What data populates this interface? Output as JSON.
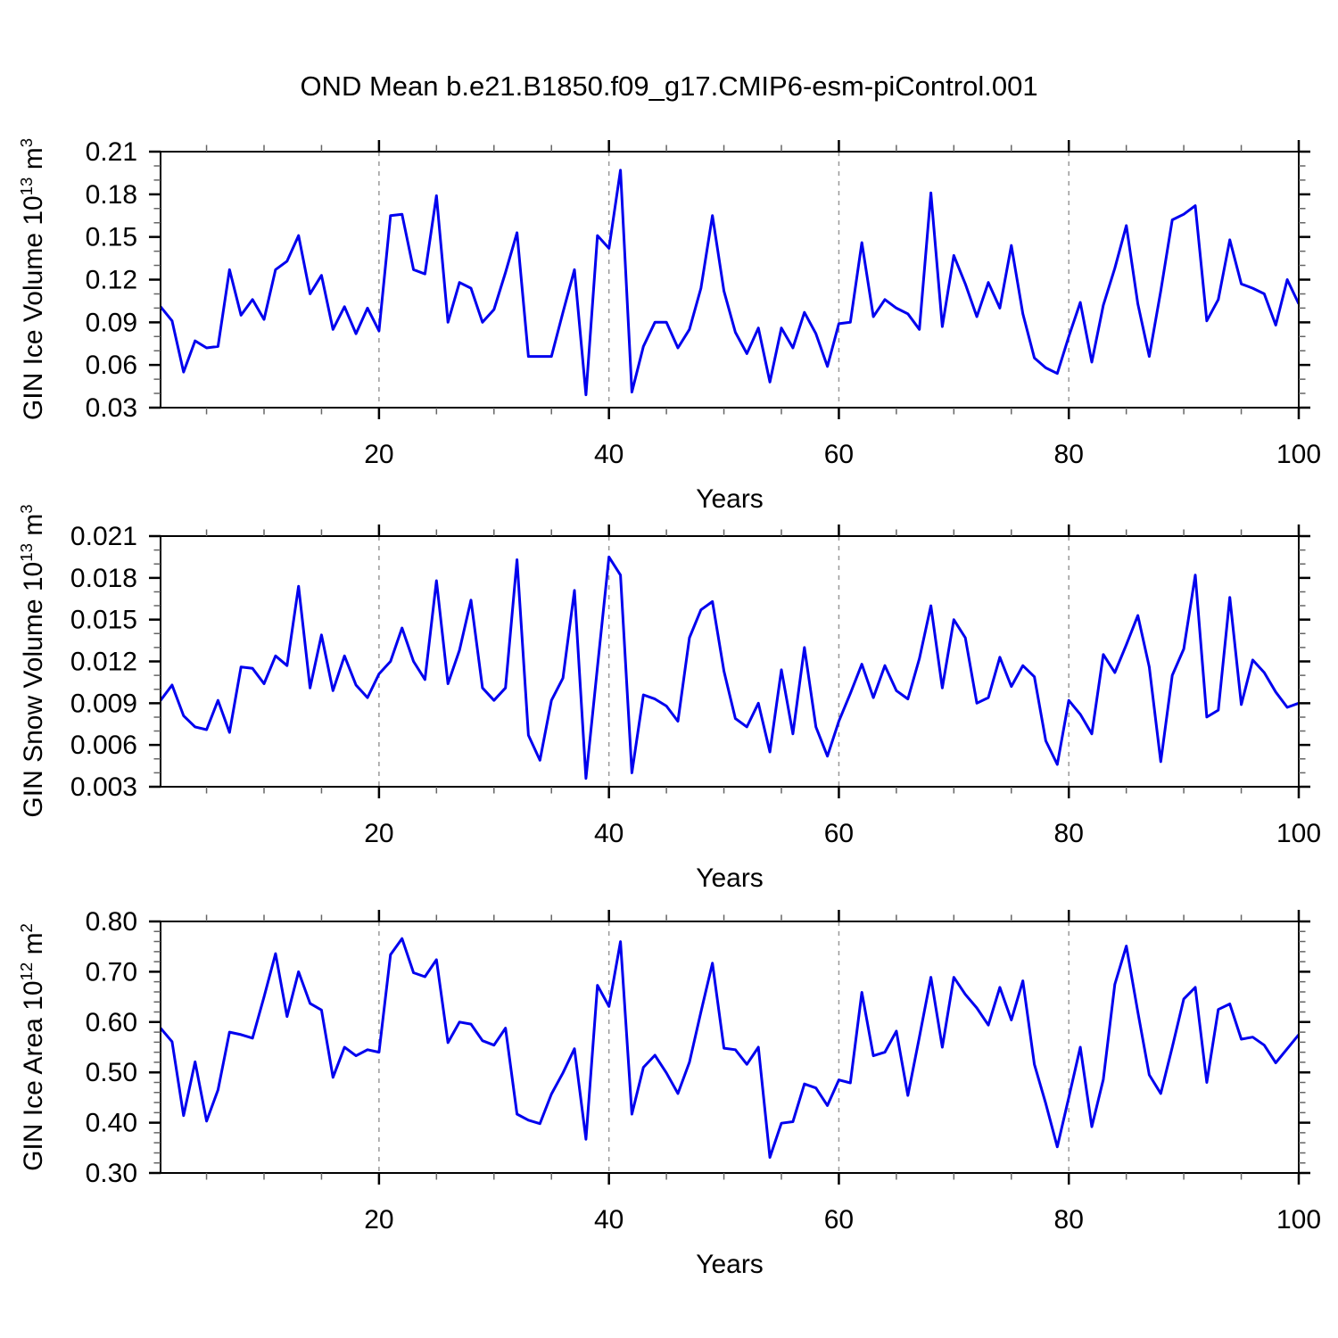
{
  "header": {
    "title": "OND Mean b.e21.B1850.f09_g17.CMIP6-esm-piControl.001"
  },
  "style": {
    "line_color": "#0000EE",
    "grid_color": "#999999",
    "axis_color": "#000000",
    "minor_tick_color": "#666666"
  },
  "chart_data": [
    {
      "type": "line",
      "name": "gin-ice-volume",
      "ylabel_base": "GIN Ice Volume 10",
      "ylabel_sup": "13",
      "ylabel_unit": " m",
      "ylabel_unit_sup": "3",
      "xlabel": "Years",
      "x_start": 1,
      "x_end": 100,
      "xticks": [
        20,
        40,
        60,
        80,
        100
      ],
      "xtick_labels": [
        "20",
        "40",
        "60",
        "80",
        "100"
      ],
      "x_minor_step": 5,
      "grid_x": [
        20,
        40,
        60,
        80
      ],
      "ylim": [
        0.03,
        0.21
      ],
      "yticks": [
        0.21,
        0.18,
        0.15,
        0.12,
        0.09,
        0.06,
        0.03
      ],
      "ytick_labels": [
        "0.21",
        "0.18",
        "0.15",
        "0.12",
        "0.09",
        "0.06",
        "0.03"
      ],
      "y_minor_step": 0.01,
      "grid": "dashed-vertical",
      "legend_position": "none",
      "values": [
        0.101,
        0.091,
        0.055,
        0.077,
        0.072,
        0.073,
        0.127,
        0.095,
        0.106,
        0.092,
        0.127,
        0.133,
        0.151,
        0.11,
        0.123,
        0.085,
        0.101,
        0.082,
        0.1,
        0.084,
        0.165,
        0.166,
        0.127,
        0.124,
        0.179,
        0.09,
        0.118,
        0.114,
        0.09,
        0.099,
        0.125,
        0.153,
        0.066,
        0.066,
        0.066,
        0.097,
        0.127,
        0.039,
        0.151,
        0.142,
        0.197,
        0.041,
        0.073,
        0.09,
        0.09,
        0.072,
        0.085,
        0.114,
        0.165,
        0.112,
        0.083,
        0.068,
        0.086,
        0.048,
        0.086,
        0.072,
        0.097,
        0.082,
        0.059,
        0.089,
        0.09,
        0.146,
        0.094,
        0.106,
        0.1,
        0.096,
        0.085,
        0.181,
        0.087,
        0.137,
        0.117,
        0.094,
        0.118,
        0.1,
        0.144,
        0.096,
        0.065,
        0.058,
        0.054,
        0.08,
        0.104,
        0.062,
        0.102,
        0.128,
        0.158,
        0.103,
        0.066,
        0.112,
        0.162,
        0.166,
        0.172,
        0.091,
        0.106,
        0.148,
        0.117,
        0.114,
        0.11,
        0.088,
        0.12,
        0.103
      ]
    },
    {
      "type": "line",
      "name": "gin-snow-volume",
      "ylabel_base": "GIN Snow Volume 10",
      "ylabel_sup": "13",
      "ylabel_unit": " m",
      "ylabel_unit_sup": "3",
      "xlabel": "Years",
      "x_start": 1,
      "x_end": 100,
      "xticks": [
        20,
        40,
        60,
        80,
        100
      ],
      "xtick_labels": [
        "20",
        "40",
        "60",
        "80",
        "100"
      ],
      "x_minor_step": 5,
      "grid_x": [
        20,
        40,
        60,
        80
      ],
      "ylim": [
        0.003,
        0.021
      ],
      "yticks": [
        0.021,
        0.018,
        0.015,
        0.012,
        0.009,
        0.006,
        0.003
      ],
      "ytick_labels": [
        "0.021",
        "0.018",
        "0.015",
        "0.012",
        "0.009",
        "0.006",
        "0.003"
      ],
      "y_minor_step": 0.001,
      "grid": "dashed-vertical",
      "legend_position": "none",
      "values": [
        0.0092,
        0.0103,
        0.0081,
        0.0073,
        0.0071,
        0.0092,
        0.0069,
        0.0116,
        0.0115,
        0.0104,
        0.0124,
        0.0117,
        0.0174,
        0.0101,
        0.0139,
        0.0099,
        0.0124,
        0.0103,
        0.0094,
        0.0111,
        0.012,
        0.0144,
        0.012,
        0.0107,
        0.0178,
        0.0104,
        0.0128,
        0.0164,
        0.0101,
        0.0092,
        0.0101,
        0.0193,
        0.0067,
        0.0049,
        0.0092,
        0.0108,
        0.0171,
        0.0036,
        0.0116,
        0.0195,
        0.0182,
        0.004,
        0.0096,
        0.0093,
        0.0088,
        0.0077,
        0.0137,
        0.0157,
        0.0163,
        0.0113,
        0.0079,
        0.0073,
        0.009,
        0.0055,
        0.0114,
        0.0068,
        0.013,
        0.0073,
        0.0052,
        0.0077,
        0.0097,
        0.0118,
        0.0094,
        0.0117,
        0.0099,
        0.0093,
        0.0122,
        0.016,
        0.0101,
        0.015,
        0.0137,
        0.009,
        0.0094,
        0.0123,
        0.0102,
        0.0117,
        0.0109,
        0.0063,
        0.0046,
        0.0092,
        0.0082,
        0.0068,
        0.0125,
        0.0112,
        0.0132,
        0.0153,
        0.0116,
        0.0048,
        0.011,
        0.0129,
        0.0182,
        0.008,
        0.0085,
        0.0166,
        0.0089,
        0.0121,
        0.0112,
        0.0098,
        0.0087,
        0.009
      ]
    },
    {
      "type": "line",
      "name": "gin-ice-area",
      "ylabel_base": "GIN Ice Area 10",
      "ylabel_sup": "12",
      "ylabel_unit": " m",
      "ylabel_unit_sup": "2",
      "xlabel": "Years",
      "x_start": 1,
      "x_end": 100,
      "xticks": [
        20,
        40,
        60,
        80,
        100
      ],
      "xtick_labels": [
        "20",
        "40",
        "60",
        "80",
        "100"
      ],
      "x_minor_step": 5,
      "grid_x": [
        20,
        40,
        60,
        80
      ],
      "ylim": [
        0.3,
        0.8
      ],
      "yticks": [
        0.8,
        0.7,
        0.6,
        0.5,
        0.4,
        0.3
      ],
      "ytick_labels": [
        "0.80",
        "0.70",
        "0.60",
        "0.50",
        "0.40",
        "0.30"
      ],
      "y_minor_step": 0.02,
      "grid": "dashed-vertical",
      "legend_position": "none",
      "values": [
        0.588,
        0.561,
        0.414,
        0.521,
        0.403,
        0.465,
        0.58,
        0.575,
        0.568,
        0.65,
        0.736,
        0.611,
        0.7,
        0.637,
        0.624,
        0.49,
        0.55,
        0.533,
        0.545,
        0.54,
        0.734,
        0.766,
        0.698,
        0.69,
        0.724,
        0.559,
        0.6,
        0.596,
        0.563,
        0.554,
        0.588,
        0.417,
        0.405,
        0.398,
        0.457,
        0.499,
        0.547,
        0.367,
        0.673,
        0.631,
        0.76,
        0.417,
        0.51,
        0.534,
        0.499,
        0.458,
        0.52,
        0.62,
        0.717,
        0.548,
        0.545,
        0.516,
        0.55,
        0.331,
        0.399,
        0.402,
        0.477,
        0.469,
        0.434,
        0.485,
        0.479,
        0.659,
        0.533,
        0.54,
        0.582,
        0.454,
        0.57,
        0.689,
        0.55,
        0.689,
        0.655,
        0.628,
        0.594,
        0.669,
        0.604,
        0.682,
        0.516,
        0.438,
        0.352,
        0.45,
        0.55,
        0.392,
        0.486,
        0.675,
        0.751,
        0.62,
        0.495,
        0.458,
        0.55,
        0.646,
        0.669,
        0.48,
        0.625,
        0.636,
        0.566,
        0.57,
        0.554,
        0.519,
        0.547,
        0.575
      ]
    }
  ]
}
